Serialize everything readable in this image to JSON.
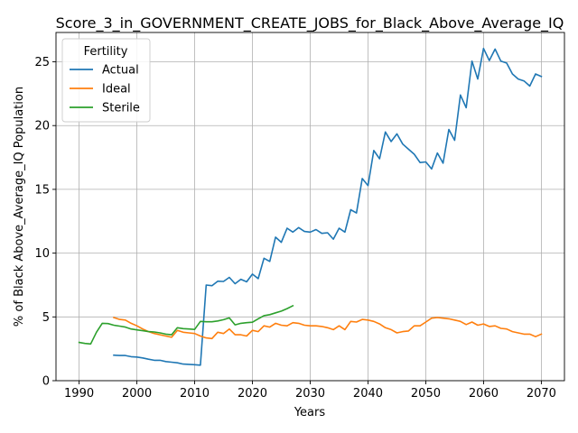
{
  "chart_data": {
    "type": "line",
    "title": "Score_3_in_GOVERNMENT_CREATE_JOBS_for_Black_Above_Average_IQ",
    "xlabel": "Years",
    "ylabel": "% of Black Above_Average_IQ Population",
    "xlim": [
      1986.0,
      2074.0
    ],
    "ylim": [
      0,
      27.3
    ],
    "xticks": [
      1990,
      2000,
      2010,
      2020,
      2030,
      2040,
      2050,
      2060,
      2070
    ],
    "yticks": [
      0,
      5,
      10,
      15,
      20,
      25
    ],
    "grid": true,
    "legend": {
      "title": "Fertility",
      "placement": "top-left"
    },
    "series": [
      {
        "name": "Actual",
        "color": "#1f77b4",
        "x": [
          1996,
          1997,
          1998,
          1999,
          2000,
          2001,
          2002,
          2003,
          2004,
          2005,
          2006,
          2007,
          2008,
          2009,
          2010,
          2011,
          2012,
          2013,
          2014,
          2015,
          2016,
          2017,
          2018,
          2019,
          2020,
          2021,
          2022,
          2023,
          2024,
          2025,
          2026,
          2027,
          2028,
          2029,
          2030,
          2031,
          2032,
          2033,
          2034,
          2035,
          2036,
          2037,
          2038,
          2039,
          2040,
          2041,
          2042,
          2043,
          2044,
          2045,
          2046,
          2047,
          2048,
          2049,
          2050,
          2051,
          2052,
          2053,
          2054,
          2055,
          2056,
          2057,
          2058,
          2059,
          2060,
          2061,
          2062,
          2063,
          2064,
          2065,
          2066,
          2067,
          2068,
          2069,
          2070
        ],
        "y": [
          2.0,
          1.97,
          1.97,
          1.88,
          1.85,
          1.78,
          1.68,
          1.6,
          1.6,
          1.5,
          1.45,
          1.4,
          1.3,
          1.28,
          1.25,
          1.22,
          7.5,
          7.45,
          7.8,
          7.78,
          8.1,
          7.6,
          7.95,
          7.75,
          8.35,
          8.0,
          9.6,
          9.35,
          11.25,
          10.85,
          11.95,
          11.65,
          12.0,
          11.7,
          11.65,
          11.85,
          11.55,
          11.6,
          11.1,
          11.95,
          11.65,
          13.4,
          13.15,
          15.85,
          15.3,
          18.05,
          17.4,
          19.5,
          18.75,
          19.35,
          18.55,
          18.15,
          17.75,
          17.1,
          17.15,
          16.6,
          17.85,
          17.05,
          19.7,
          18.85,
          22.4,
          21.4,
          25.05,
          23.65,
          26.05,
          25.1,
          26.0,
          25.05,
          24.9,
          24.05,
          23.65,
          23.5,
          23.1,
          24.05,
          23.85
        ]
      },
      {
        "name": "Ideal",
        "color": "#ff7f0e",
        "x": [
          1996,
          1997,
          1998,
          1999,
          2000,
          2001,
          2002,
          2003,
          2004,
          2005,
          2006,
          2007,
          2008,
          2009,
          2010,
          2011,
          2012,
          2013,
          2014,
          2015,
          2016,
          2017,
          2018,
          2019,
          2020,
          2021,
          2022,
          2023,
          2024,
          2025,
          2026,
          2027,
          2028,
          2029,
          2030,
          2031,
          2032,
          2033,
          2034,
          2035,
          2036,
          2037,
          2038,
          2039,
          2040,
          2041,
          2042,
          2043,
          2044,
          2045,
          2046,
          2047,
          2048,
          2049,
          2050,
          2051,
          2052,
          2053,
          2054,
          2055,
          2056,
          2057,
          2058,
          2059,
          2060,
          2061,
          2062,
          2063,
          2064,
          2065,
          2066,
          2067,
          2068,
          2069,
          2070
        ],
        "y": [
          4.95,
          4.8,
          4.75,
          4.5,
          4.3,
          4.05,
          3.85,
          3.7,
          3.6,
          3.5,
          3.4,
          3.95,
          3.8,
          3.75,
          3.7,
          3.5,
          3.35,
          3.3,
          3.8,
          3.7,
          4.05,
          3.6,
          3.6,
          3.5,
          3.95,
          3.85,
          4.3,
          4.2,
          4.5,
          4.35,
          4.3,
          4.55,
          4.5,
          4.35,
          4.3,
          4.3,
          4.25,
          4.15,
          4.0,
          4.3,
          4.0,
          4.65,
          4.6,
          4.8,
          4.75,
          4.65,
          4.45,
          4.15,
          4.0,
          3.75,
          3.85,
          3.9,
          4.3,
          4.3,
          4.6,
          4.9,
          4.95,
          4.9,
          4.85,
          4.75,
          4.65,
          4.4,
          4.6,
          4.35,
          4.45,
          4.25,
          4.3,
          4.1,
          4.05,
          3.85,
          3.75,
          3.65,
          3.65,
          3.45,
          3.65
        ]
      },
      {
        "name": "Sterile",
        "color": "#2ca02c",
        "x": [
          1990,
          1991,
          1992,
          1993,
          1994,
          1995,
          1996,
          1997,
          1998,
          1999,
          2000,
          2001,
          2002,
          2003,
          2004,
          2005,
          2006,
          2007,
          2008,
          2009,
          2010,
          2011,
          2012,
          2013,
          2014,
          2015,
          2016,
          2017,
          2018,
          2019,
          2020,
          2021,
          2022,
          2023,
          2024,
          2025,
          2026,
          2027
        ],
        "y": [
          3.0,
          2.92,
          2.88,
          3.8,
          4.5,
          4.48,
          4.35,
          4.28,
          4.2,
          4.05,
          3.98,
          3.92,
          3.85,
          3.82,
          3.75,
          3.65,
          3.6,
          4.15,
          4.08,
          4.05,
          4.02,
          4.65,
          4.62,
          4.62,
          4.68,
          4.78,
          4.92,
          4.38,
          4.5,
          4.55,
          4.58,
          4.85,
          5.1,
          5.18,
          5.32,
          5.45,
          5.65,
          5.88
        ]
      }
    ]
  }
}
